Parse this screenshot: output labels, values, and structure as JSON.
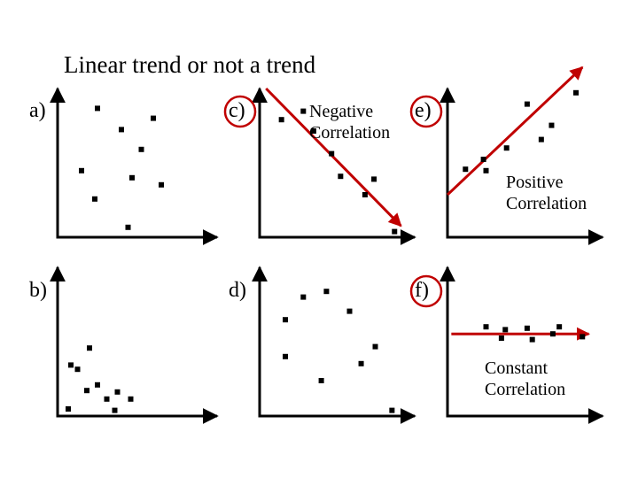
{
  "title": "Linear trend or not a trend",
  "colors": {
    "axis": "#000000",
    "point": "#000000",
    "trend_line": "#c00000",
    "circle": "#c00000"
  },
  "chart_data": [
    {
      "type": "scatter",
      "panel_label": "a)",
      "annotation": [],
      "trend": null,
      "points": [
        [
          0.3,
          0.91
        ],
        [
          0.48,
          0.76
        ],
        [
          0.72,
          0.84
        ],
        [
          0.18,
          0.47
        ],
        [
          0.63,
          0.62
        ],
        [
          0.56,
          0.42
        ],
        [
          0.78,
          0.37
        ],
        [
          0.28,
          0.27
        ],
        [
          0.53,
          0.07
        ]
      ]
    },
    {
      "type": "scatter",
      "panel_label": "b)",
      "annotation": [],
      "trend": null,
      "points": [
        [
          0.24,
          0.48
        ],
        [
          0.1,
          0.36
        ],
        [
          0.15,
          0.33
        ],
        [
          0.3,
          0.22
        ],
        [
          0.22,
          0.18
        ],
        [
          0.45,
          0.17
        ],
        [
          0.37,
          0.12
        ],
        [
          0.55,
          0.12
        ],
        [
          0.08,
          0.05
        ],
        [
          0.43,
          0.04
        ]
      ]
    },
    {
      "type": "scatter",
      "panel_label": "c)",
      "circled": true,
      "annotation": [
        "Negative",
        "Correlation"
      ],
      "trend": {
        "from": [
          0.05,
          1.05
        ],
        "to": [
          1.1,
          0.08
        ],
        "arrow": true
      },
      "points": [
        [
          0.17,
          0.83
        ],
        [
          0.34,
          0.89
        ],
        [
          0.42,
          0.75
        ],
        [
          0.56,
          0.59
        ],
        [
          0.63,
          0.43
        ],
        [
          0.89,
          0.41
        ],
        [
          0.82,
          0.3
        ],
        [
          1.05,
          0.04
        ]
      ]
    },
    {
      "type": "scatter",
      "panel_label": "d)",
      "annotation": [],
      "trend": null,
      "points": [
        [
          0.34,
          0.84
        ],
        [
          0.52,
          0.88
        ],
        [
          0.7,
          0.74
        ],
        [
          0.2,
          0.68
        ],
        [
          0.9,
          0.49
        ],
        [
          0.2,
          0.42
        ],
        [
          0.79,
          0.37
        ],
        [
          0.48,
          0.25
        ],
        [
          1.03,
          0.04
        ]
      ]
    },
    {
      "type": "scatter",
      "panel_label": "e)",
      "circled": true,
      "annotation": [],
      "trend": {
        "from": [
          0.0,
          0.3
        ],
        "to": [
          1.05,
          1.2
        ],
        "arrow": true
      },
      "points": [
        [
          1.0,
          1.02
        ],
        [
          0.62,
          0.94
        ],
        [
          0.81,
          0.79
        ],
        [
          0.73,
          0.69
        ],
        [
          0.46,
          0.63
        ],
        [
          0.28,
          0.55
        ],
        [
          0.14,
          0.48
        ],
        [
          0.3,
          0.47
        ]
      ]
    },
    {
      "type": "scatter",
      "panel_label": "f)",
      "circled": true,
      "annotation": [
        "Constant",
        "Correlation"
      ],
      "trend": {
        "from": [
          0.03,
          0.58
        ],
        "to": [
          1.1,
          0.58
        ],
        "arrow": true
      },
      "points": [
        [
          0.3,
          0.63
        ],
        [
          0.45,
          0.61
        ],
        [
          0.62,
          0.62
        ],
        [
          0.87,
          0.63
        ],
        [
          0.82,
          0.58
        ],
        [
          1.05,
          0.56
        ],
        [
          0.42,
          0.55
        ],
        [
          0.66,
          0.54
        ]
      ]
    }
  ],
  "side_notes": {
    "positive": [
      "Positive",
      "Correlation"
    ]
  }
}
